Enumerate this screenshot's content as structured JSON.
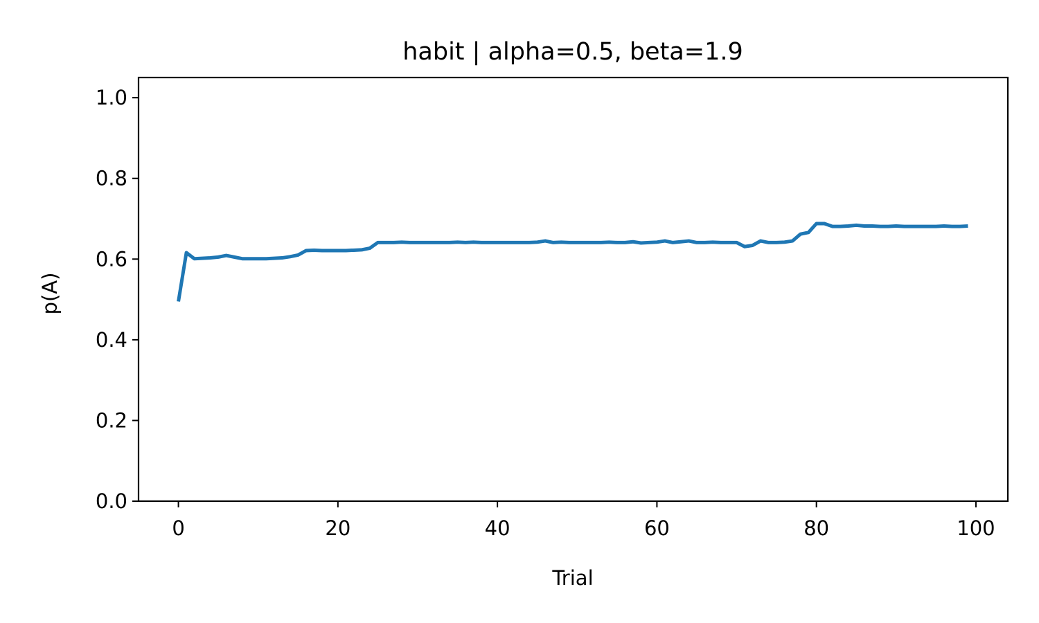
{
  "chart_data": {
    "type": "line",
    "title": "habit | alpha=0.5, beta=1.9",
    "xlabel": "Trial",
    "ylabel": "p(A)",
    "xlim": [
      -5,
      104
    ],
    "ylim": [
      0.0,
      1.05
    ],
    "xticks": [
      0,
      20,
      40,
      60,
      80,
      100
    ],
    "xtick_labels": [
      "0",
      "20",
      "40",
      "60",
      "80",
      "100"
    ],
    "yticks": [
      0.0,
      0.2,
      0.4,
      0.6,
      0.8,
      1.0
    ],
    "ytick_labels": [
      "0.0",
      "0.2",
      "0.4",
      "0.6",
      "0.8",
      "1.0"
    ],
    "grid": false,
    "series": [
      {
        "color": "#1f77b4",
        "x": [
          0,
          1,
          2,
          3,
          4,
          5,
          6,
          7,
          8,
          9,
          10,
          11,
          12,
          13,
          14,
          15,
          16,
          17,
          18,
          19,
          20,
          21,
          22,
          23,
          24,
          25,
          26,
          27,
          28,
          29,
          30,
          31,
          32,
          33,
          34,
          35,
          36,
          37,
          38,
          39,
          40,
          41,
          42,
          43,
          44,
          45,
          46,
          47,
          48,
          49,
          50,
          51,
          52,
          53,
          54,
          55,
          56,
          57,
          58,
          59,
          60,
          61,
          62,
          63,
          64,
          65,
          66,
          67,
          68,
          69,
          70,
          71,
          72,
          73,
          74,
          75,
          76,
          77,
          78,
          79,
          80,
          81,
          82,
          83,
          84,
          85,
          86,
          87,
          88,
          89,
          90,
          91,
          92,
          93,
          94,
          95,
          96,
          97,
          98,
          99
        ],
        "values": [
          0.495,
          0.616,
          0.601,
          0.602,
          0.603,
          0.605,
          0.609,
          0.605,
          0.601,
          0.601,
          0.601,
          0.601,
          0.602,
          0.603,
          0.606,
          0.61,
          0.621,
          0.622,
          0.621,
          0.621,
          0.621,
          0.621,
          0.622,
          0.623,
          0.627,
          0.641,
          0.641,
          0.641,
          0.642,
          0.641,
          0.641,
          0.641,
          0.641,
          0.641,
          0.641,
          0.642,
          0.641,
          0.642,
          0.641,
          0.641,
          0.641,
          0.641,
          0.641,
          0.641,
          0.641,
          0.642,
          0.645,
          0.641,
          0.642,
          0.641,
          0.641,
          0.641,
          0.641,
          0.641,
          0.642,
          0.641,
          0.641,
          0.643,
          0.64,
          0.641,
          0.642,
          0.645,
          0.641,
          0.643,
          0.645,
          0.641,
          0.641,
          0.642,
          0.641,
          0.641,
          0.641,
          0.631,
          0.634,
          0.645,
          0.641,
          0.641,
          0.642,
          0.645,
          0.662,
          0.666,
          0.688,
          0.688,
          0.681,
          0.681,
          0.682,
          0.684,
          0.682,
          0.682,
          0.681,
          0.681,
          0.682,
          0.681,
          0.681,
          0.681,
          0.681,
          0.681,
          0.682,
          0.681,
          0.681,
          0.682
        ]
      }
    ]
  }
}
